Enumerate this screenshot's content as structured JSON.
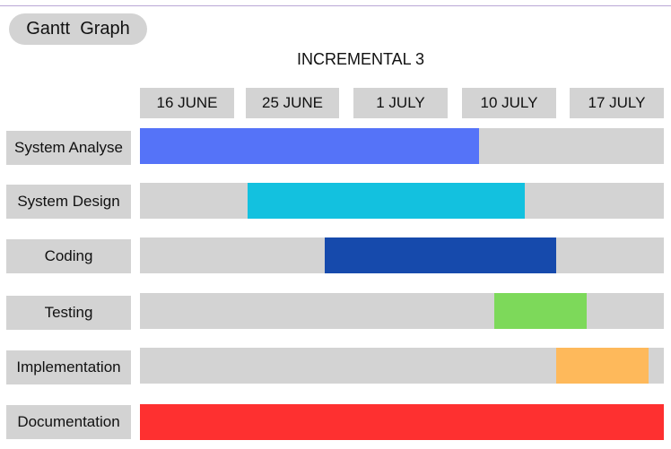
{
  "header": {
    "badge": "Gantt  Graph"
  },
  "chart_data": {
    "type": "bar",
    "orientation": "horizontal",
    "title": "INCREMENTAL 3",
    "x_ticks": [
      "16 JUNE",
      "25 JUNE",
      "1 JULY",
      "10 JULY",
      "17 JULY"
    ],
    "xlim": [
      "2024-06-16",
      "2024-07-20"
    ],
    "tasks": [
      {
        "label": "System Analyse",
        "start": "2024-06-16",
        "end": "2024-07-08",
        "color": "#5573f8"
      },
      {
        "label": "System Design",
        "start": "2024-06-23",
        "end": "2024-07-11",
        "color": "#13c1df"
      },
      {
        "label": "Coding",
        "start": "2024-06-28",
        "end": "2024-07-13",
        "color": "#164aac"
      },
      {
        "label": "Testing",
        "start": "2024-07-09",
        "end": "2024-07-15",
        "color": "#7dd95a"
      },
      {
        "label": "Implementation",
        "start": "2024-07-13",
        "end": "2024-07-19",
        "color": "#feb95b"
      },
      {
        "label": "Documentation",
        "start": "2024-06-16",
        "end": "2024-07-20",
        "color": "#fe3030"
      }
    ],
    "grid": false,
    "legend": "none"
  }
}
